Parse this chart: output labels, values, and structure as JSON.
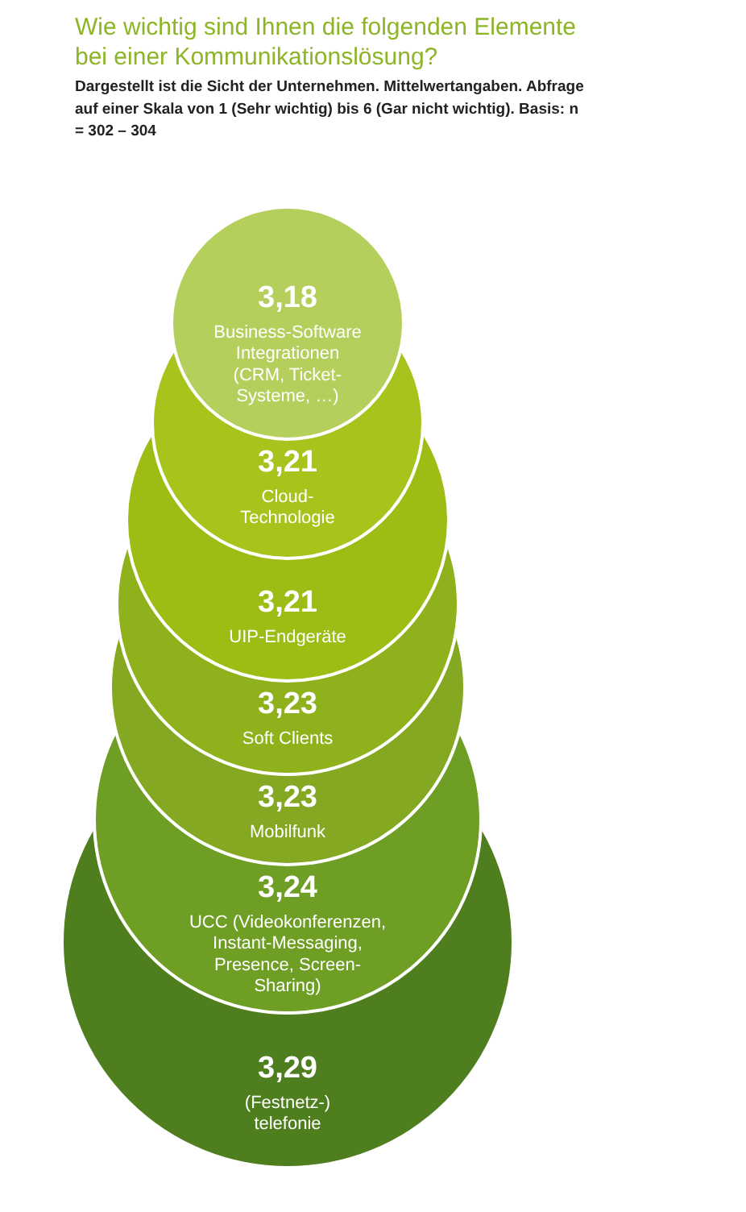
{
  "chart_data": {
    "type": "other",
    "title": "Wie wichtig sind Ihnen die folgenden Elemente bei einer Kommunikationslösung?",
    "subtitle": "Dargestellt ist die Sicht der Unternehmen. Mittelwertangaben. Abfrage auf einer Skala von 1 (Sehr wichtig) bis 6 (Gar nicht wichtig). Basis: n = 302 – 304",
    "categories": [
      "Business-Software\nIntegrationen\n(CRM, Ticket-\nSysteme, …)",
      "Cloud-\nTechnologie",
      "UIP-Endgeräte",
      "Soft Clients",
      "Mobilfunk",
      "UCC (Videokonferenzen,\nInstant-Messaging,\nPresence, Screen-\nSharing)",
      "(Festnetz-)\ntelefonie"
    ],
    "values": [
      3.18,
      3.21,
      3.21,
      3.23,
      3.23,
      3.24,
      3.29
    ],
    "value_labels": [
      "3,18",
      "3,21",
      "3,21",
      "3,23",
      "3,23",
      "3,24",
      "3,29"
    ],
    "colors": [
      "#b5cf5c",
      "#a6c41c",
      "#9dbd14",
      "#8fb11b",
      "#84a821",
      "#6e9e24",
      "#4f7e1f"
    ]
  }
}
